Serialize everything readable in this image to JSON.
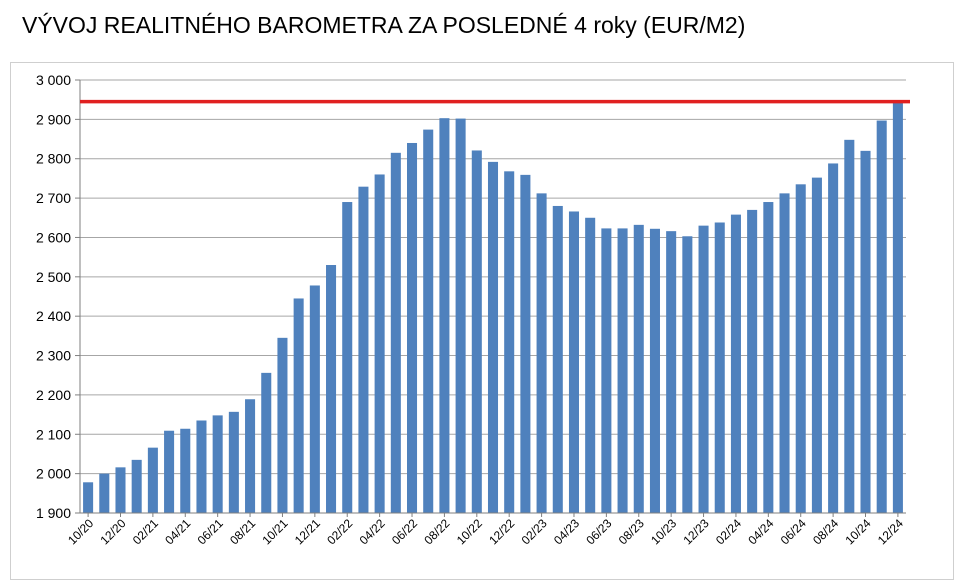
{
  "title": "VÝVOJ REALITNÉHO BAROMETRA ZA POSLEDNÉ 4 roky (EUR/M2)",
  "chart_data": {
    "type": "bar",
    "title": "VÝVOJ REALITNÉHO BAROMETRA ZA POSLEDNÉ 4 roky (EUR/M2)",
    "xlabel": "",
    "ylabel": "",
    "ylim": [
      1900,
      3000
    ],
    "yticks": [
      1900,
      2000,
      2100,
      2200,
      2300,
      2400,
      2500,
      2600,
      2700,
      2800,
      2900,
      3000
    ],
    "ytick_labels": [
      "1 900",
      "2 000",
      "2 100",
      "2 200",
      "2 300",
      "2 400",
      "2 500",
      "2 600",
      "2 700",
      "2 800",
      "2 900",
      "3 000"
    ],
    "grid": "horizontal",
    "legend": "none",
    "categories": [
      "10/20",
      "11/20",
      "12/20",
      "01/21",
      "02/21",
      "03/21",
      "04/21",
      "05/21",
      "06/21",
      "07/21",
      "08/21",
      "09/21",
      "10/21",
      "11/21",
      "12/21",
      "01/22",
      "02/22",
      "03/22",
      "04/22",
      "05/22",
      "06/22",
      "07/22",
      "08/22",
      "09/22",
      "10/22",
      "11/22",
      "12/22",
      "01/23",
      "02/23",
      "03/23",
      "04/23",
      "05/23",
      "06/23",
      "07/23",
      "08/23",
      "09/23",
      "10/23",
      "11/23",
      "12/23",
      "01/24",
      "02/24",
      "03/24",
      "04/24",
      "05/24",
      "06/24",
      "07/24",
      "08/24",
      "09/24",
      "10/24",
      "11/24",
      "12/24"
    ],
    "xtick_labels": [
      "10/20",
      "12/20",
      "02/21",
      "04/21",
      "06/21",
      "08/21",
      "10/21",
      "12/21",
      "02/22",
      "04/22",
      "06/22",
      "08/22",
      "10/22",
      "12/22",
      "02/23",
      "04/23",
      "06/23",
      "08/23",
      "10/23",
      "12/23",
      "02/24",
      "04/24",
      "06/24",
      "08/24",
      "10/24",
      "12/24"
    ],
    "series": [
      {
        "values": [
          1978,
          2000,
          2016,
          2035,
          2066,
          2109,
          2114,
          2135,
          2148,
          2157,
          2189,
          2256,
          2345,
          2445,
          2478,
          2530,
          2690,
          2729,
          2760,
          2815,
          2840,
          2874,
          2903,
          2902,
          2821,
          2792,
          2768,
          2759,
          2712,
          2680,
          2666,
          2650,
          2623,
          2623,
          2632,
          2622,
          2616,
          2603,
          2630,
          2638,
          2658,
          2670,
          2690,
          2712,
          2735,
          2752,
          2788,
          2848,
          2820,
          2897,
          2945
        ],
        "color": "#4f81bd"
      }
    ],
    "reference_line": {
      "value": 2945,
      "color": "#e02020"
    }
  }
}
